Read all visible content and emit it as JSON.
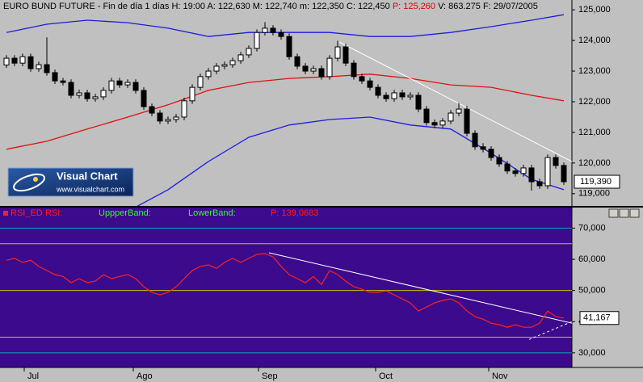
{
  "chart_data": [
    {
      "type": "candlestick",
      "header": {
        "main": "EURO BUND FUTURE - Fin de día 1 días H: 19:00 A: 122,630 M: 122,740 m: 122,350 C: 122,450",
        "p": "P: 125,260",
        "rest": "V: 863.275 F: 29/07/2005"
      },
      "logo": {
        "title": "Visual Chart",
        "url": "www.visualchart.com"
      },
      "open": [
        123200,
        123420,
        123260,
        123470,
        123080,
        123210,
        122950,
        122680,
        122630,
        122210,
        122290,
        122100,
        122160,
        122370,
        122680,
        122550,
        122630,
        122370,
        121840,
        121630,
        121370,
        121420,
        121500,
        122030,
        122470,
        122820,
        123000,
        123160,
        123210,
        123340,
        123530,
        123740,
        124260,
        124400,
        124260,
        124130,
        123470,
        123160,
        123000,
        123080,
        122820,
        123420,
        123790,
        123260,
        122820,
        122680,
        122470,
        122210,
        122100,
        122290,
        122160,
        122210,
        121760,
        121320,
        121240,
        121370,
        121630,
        121760,
        120970,
        120530,
        120450,
        120180,
        119970,
        119740,
        119660,
        119840,
        119390,
        119260,
        120180,
        119920
      ],
      "high": [
        123520,
        123520,
        123570,
        123570,
        123310,
        124100,
        123050,
        122780,
        122730,
        122390,
        122390,
        122260,
        122470,
        122780,
        122780,
        122730,
        122730,
        122470,
        121940,
        121730,
        121520,
        121600,
        122130,
        122570,
        122920,
        123100,
        123260,
        123310,
        123440,
        123630,
        123840,
        124360,
        124600,
        124500,
        124360,
        124230,
        123570,
        123260,
        123180,
        123180,
        123520,
        123990,
        123890,
        123360,
        122920,
        122780,
        122570,
        122310,
        122390,
        122390,
        122310,
        122310,
        121860,
        121420,
        121470,
        121730,
        121960,
        121860,
        121070,
        120650,
        120550,
        120280,
        120070,
        119840,
        119940,
        119940,
        119490,
        120280,
        120280,
        120020
      ],
      "low": [
        123100,
        123160,
        123160,
        122980,
        122980,
        122850,
        122580,
        122530,
        122110,
        122110,
        122000,
        122000,
        122060,
        122270,
        122450,
        122450,
        122270,
        121740,
        121530,
        121270,
        121270,
        121320,
        121400,
        121930,
        122370,
        122720,
        122900,
        123060,
        123110,
        123240,
        123430,
        123640,
        124160,
        124160,
        124030,
        123370,
        123060,
        122900,
        122900,
        122720,
        122720,
        123320,
        123160,
        122720,
        122580,
        122370,
        122110,
        122000,
        122000,
        122060,
        122060,
        121660,
        121220,
        121140,
        121140,
        121270,
        121530,
        120870,
        120430,
        120350,
        120080,
        119870,
        119640,
        119560,
        119560,
        119100,
        119160,
        119160,
        119820,
        119290
      ],
      "close": [
        123420,
        123260,
        123470,
        123080,
        123210,
        122950,
        122680,
        122630,
        122210,
        122290,
        122100,
        122160,
        122370,
        122680,
        122550,
        122630,
        122370,
        121840,
        121630,
        121370,
        121420,
        121500,
        122030,
        122470,
        122820,
        123000,
        123160,
        123210,
        123340,
        123530,
        123740,
        124260,
        124400,
        124260,
        124130,
        123470,
        123160,
        123000,
        123080,
        122820,
        123420,
        123790,
        123260,
        122820,
        122680,
        122470,
        122210,
        122100,
        122290,
        122160,
        122210,
        121760,
        121320,
        121240,
        121370,
        121630,
        121760,
        120970,
        120530,
        120450,
        120180,
        119970,
        119740,
        119660,
        119840,
        119390,
        119260,
        120180,
        119920,
        119390
      ],
      "value_labels": [
        null,
        null,
        null,
        null,
        null,
        null,
        null,
        null,
        null,
        null,
        null,
        null,
        null,
        null,
        null,
        null,
        null,
        null,
        null,
        null,
        null,
        null,
        null,
        null,
        null,
        null,
        null,
        null,
        null,
        null,
        null,
        null,
        null,
        null,
        null,
        null,
        null,
        null,
        null,
        null,
        null,
        null,
        null,
        null,
        null,
        null,
        null,
        null,
        null,
        null,
        null,
        null,
        null,
        null,
        null,
        null,
        null,
        null,
        null,
        null,
        null,
        null,
        null,
        null,
        null,
        null,
        null,
        null,
        null,
        "119,390"
      ],
      "series": [
        {
          "color": "#1c1ce0",
          "x": [
            0,
            5,
            10,
            15,
            20,
            25,
            30,
            35,
            40,
            45,
            50,
            55,
            60,
            65,
            69
          ],
          "values": [
            124260,
            124530,
            124660,
            124580,
            124400,
            124130,
            124260,
            124260,
            124260,
            124130,
            124130,
            124260,
            124450,
            124660,
            124840
          ]
        },
        {
          "color": "#e01010",
          "x": [
            0,
            5,
            10,
            15,
            20,
            25,
            30,
            35,
            40,
            45,
            50,
            55,
            60,
            65,
            69
          ],
          "values": [
            120450,
            120710,
            121110,
            121500,
            121900,
            122370,
            122630,
            122760,
            122820,
            122900,
            122760,
            122550,
            122470,
            122210,
            122030
          ]
        },
        {
          "color": "#1c1ce0",
          "x": [
            0,
            5,
            10,
            15,
            20,
            25,
            30,
            35,
            40,
            45,
            50,
            55,
            60,
            65,
            69
          ],
          "values": [
            null,
            null,
            null,
            118420,
            119130,
            120050,
            120840,
            121240,
            121420,
            121500,
            121240,
            121110,
            120320,
            119470,
            119130
          ]
        }
      ],
      "trendlines": [
        {
          "color": "#ffffff",
          "x": [
            41.2,
            70
          ],
          "values": [
            123950,
            120050
          ]
        }
      ],
      "xlim": [
        -0.8,
        70
      ],
      "ylim": [
        118600,
        125320
      ],
      "yticks": [
        {
          "value": 119000,
          "label": "119,000"
        },
        {
          "value": 120000,
          "label": "120,000"
        },
        {
          "value": 121000,
          "label": "121,000"
        },
        {
          "value": 122000,
          "label": "122,000"
        },
        {
          "value": 123000,
          "label": "123,000"
        },
        {
          "value": 124000,
          "label": "124,000"
        },
        {
          "value": 125000,
          "label": "125,000"
        }
      ]
    },
    {
      "type": "line",
      "header": {
        "name": "RSI_ED",
        "rsi": "RSI:",
        "upper": "UppperBand:",
        "lower": "LowerBand:",
        "p": "P: 139,0683"
      },
      "series": [
        {
          "color": "#ff2020",
          "values": [
            59.7,
            60.3,
            59.0,
            59.7,
            57.7,
            56.4,
            55.1,
            54.5,
            52.5,
            53.8,
            52.5,
            53.0,
            55.1,
            53.8,
            54.5,
            55.1,
            53.8,
            51.2,
            49.4,
            48.6,
            49.4,
            51.2,
            53.8,
            56.4,
            57.7,
            58.2,
            57.1,
            59.0,
            60.3,
            59.0,
            60.3,
            61.6,
            61.8,
            60.8,
            57.7,
            55.1,
            53.8,
            52.5,
            54.5,
            51.9,
            56.4,
            55.1,
            53.0,
            51.2,
            50.4,
            49.4,
            49.4,
            49.9,
            48.6,
            47.3,
            46.0,
            43.4,
            44.7,
            46.0,
            46.8,
            47.3,
            46.0,
            43.4,
            41.6,
            40.8,
            39.5,
            39.0,
            38.2,
            39.0,
            38.2,
            38.2,
            39.5,
            43.4,
            41.6,
            41.167
          ],
          "value_labels": [
            null,
            null,
            null,
            null,
            null,
            null,
            null,
            null,
            null,
            null,
            null,
            null,
            null,
            null,
            null,
            null,
            null,
            null,
            null,
            null,
            null,
            null,
            null,
            null,
            null,
            null,
            null,
            null,
            null,
            null,
            null,
            null,
            null,
            null,
            null,
            null,
            null,
            null,
            null,
            null,
            null,
            null,
            null,
            null,
            null,
            null,
            null,
            null,
            null,
            null,
            null,
            null,
            null,
            null,
            null,
            null,
            null,
            null,
            null,
            null,
            null,
            null,
            null,
            null,
            null,
            null,
            null,
            null,
            null,
            "41,167"
          ]
        }
      ],
      "levels": [
        {
          "value": 70,
          "color": "#00b0b0"
        },
        {
          "value": 65,
          "color": "#c8c800"
        },
        {
          "value": 50,
          "color": "#c8c800"
        },
        {
          "value": 35,
          "color": "#c8c800"
        },
        {
          "value": 30,
          "color": "#00b0b0"
        }
      ],
      "trendlines": [
        {
          "color": "#ffffff",
          "x": [
            32.5,
            70
          ],
          "values": [
            62.1,
            39.5
          ]
        },
        {
          "color": "#ffffff",
          "dashed": true,
          "x": [
            64.7,
            70
          ],
          "values": [
            34.3,
            40.0
          ]
        }
      ],
      "xlim": [
        -0.8,
        70
      ],
      "ylim": [
        25.3,
        76.6
      ],
      "yticks": [
        {
          "value": 30,
          "label": "30,000"
        },
        {
          "value": 40,
          "label": "40,000"
        },
        {
          "value": 50,
          "label": "50,000"
        },
        {
          "value": 60,
          "label": "60,000"
        },
        {
          "value": 70,
          "label": "70,000"
        }
      ],
      "xticks": [
        {
          "value": 2.2,
          "label": "Jul"
        },
        {
          "value": 15.7,
          "label": "Ago"
        },
        {
          "value": 31.2,
          "label": "Sep"
        },
        {
          "value": 45.7,
          "label": "Oct"
        },
        {
          "value": 59.7,
          "label": "Nov"
        }
      ]
    }
  ]
}
